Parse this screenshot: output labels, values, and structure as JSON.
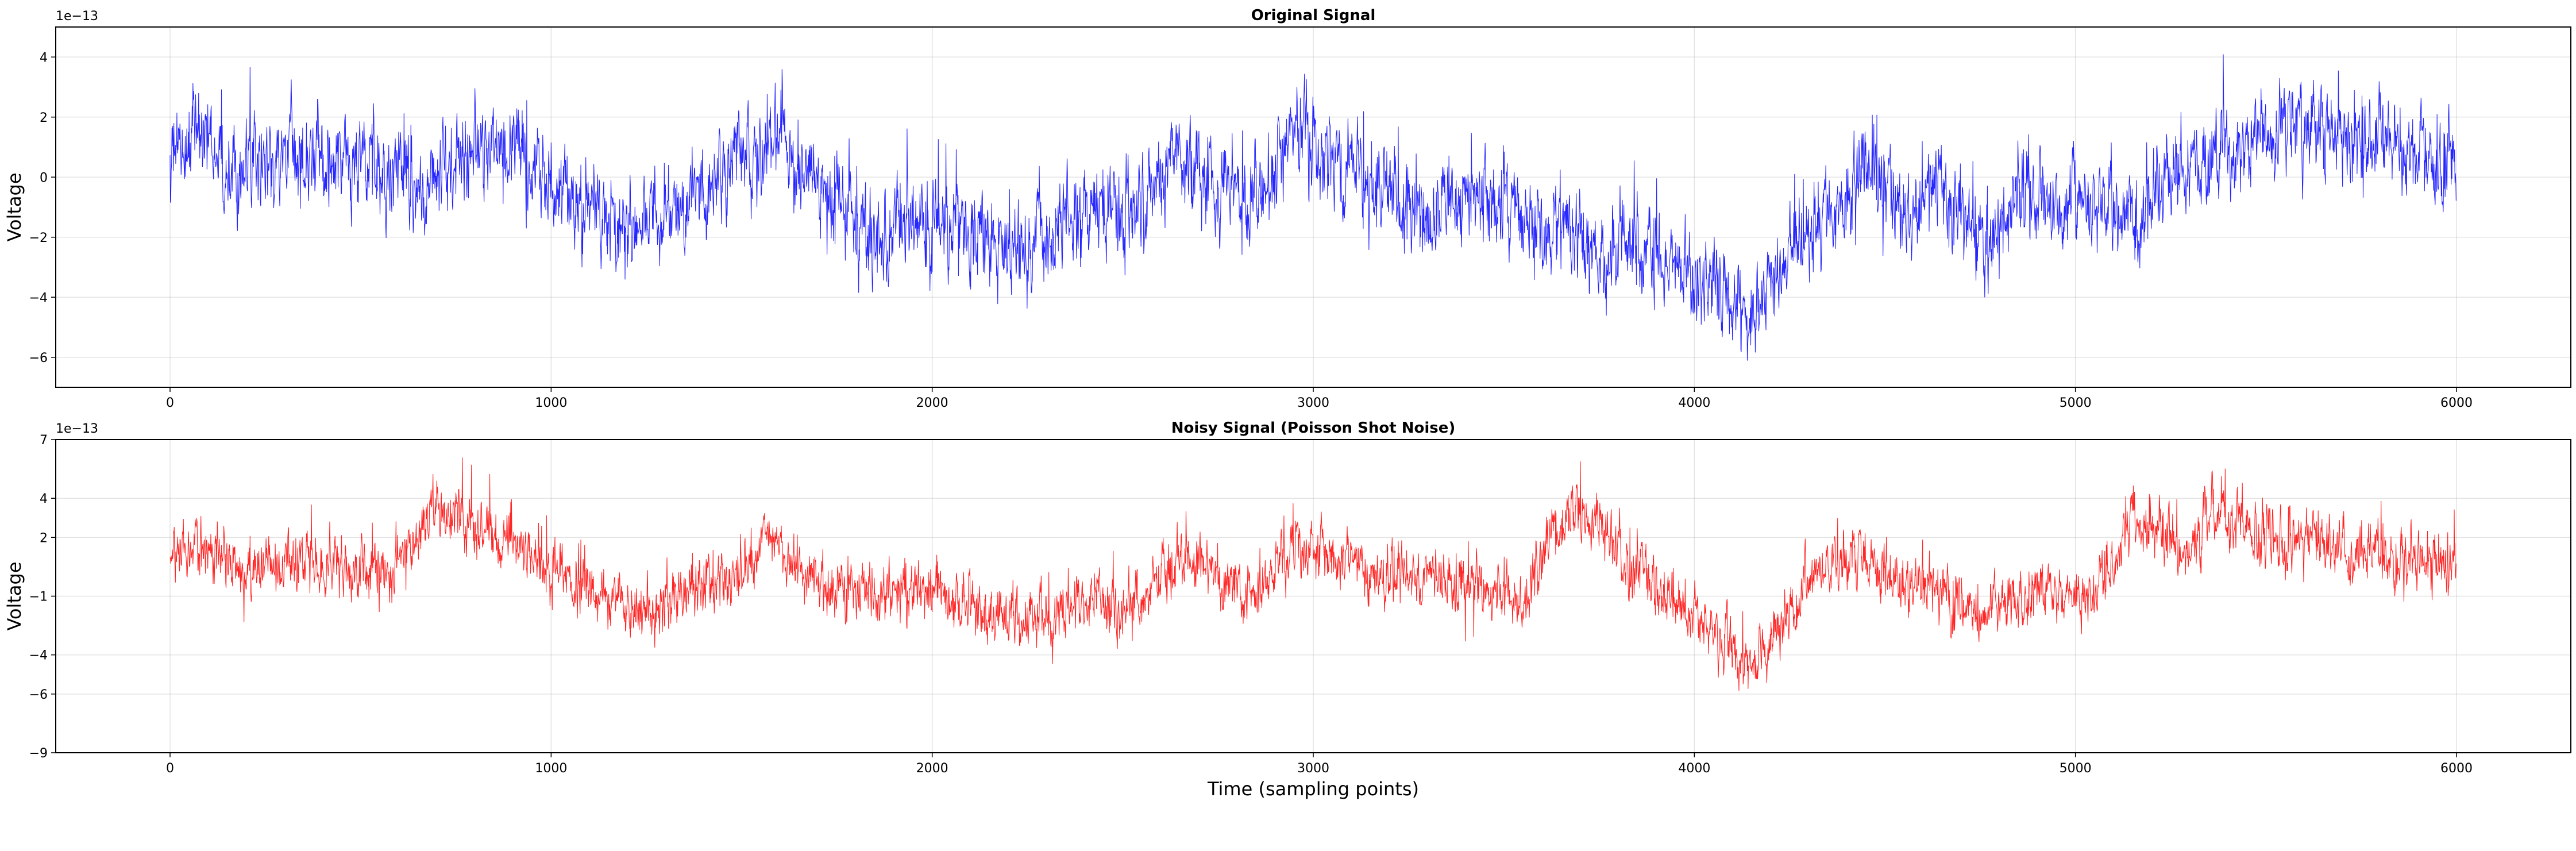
{
  "chart_data": [
    {
      "type": "line",
      "title": "Original Signal",
      "xlabel": "",
      "ylabel": "Voltage",
      "offset_text": "1e−13",
      "xlim": [
        -300,
        6300
      ],
      "ylim": [
        -7,
        5
      ],
      "xticks": [
        0,
        1000,
        2000,
        3000,
        4000,
        5000,
        6000
      ],
      "xtick_labels": [
        "0",
        "1000",
        "2000",
        "3000",
        "4000",
        "5000",
        "6000"
      ],
      "yticks": [
        -6,
        -4,
        -2,
        0,
        2,
        4
      ],
      "ytick_labels": [
        "−6",
        "−4",
        "−2",
        "0",
        "2",
        "4"
      ],
      "grid": true,
      "color": "#0000ff",
      "n_points": 6000,
      "noise_amplitude": 1.05,
      "trend_x": [
        0,
        80,
        200,
        350,
        500,
        700,
        850,
        920,
        1000,
        1100,
        1200,
        1300,
        1400,
        1500,
        1580,
        1650,
        1750,
        1900,
        2000,
        2100,
        2200,
        2300,
        2400,
        2550,
        2650,
        2750,
        2850,
        2950,
        3050,
        3150,
        3300,
        3450,
        3550,
        3650,
        3750,
        3850,
        3950,
        4050,
        4150,
        4250,
        4350,
        4450,
        4550,
        4650,
        4750,
        4850,
        4950,
        5050,
        5150,
        5250,
        5350,
        5450,
        5550,
        5650,
        5750,
        5850,
        6000
      ],
      "trend_y": [
        0.5,
        1.5,
        0.2,
        0.6,
        0.3,
        -0.2,
        1.3,
        1.1,
        -0.3,
        -1.0,
        -2.0,
        -1.0,
        -0.6,
        0.3,
        1.6,
        0.2,
        -0.8,
        -2.0,
        -1.7,
        -1.6,
        -2.6,
        -1.8,
        -1.0,
        -1.4,
        0.9,
        -0.6,
        -0.5,
        1.5,
        0.9,
        -0.3,
        -1.4,
        -0.5,
        -1.8,
        -1.5,
        -2.6,
        -1.9,
        -3.2,
        -3.7,
        -4.5,
        -2.5,
        -1.3,
        0.5,
        -1.4,
        -0.6,
        -2.2,
        -0.8,
        -0.6,
        -0.9,
        -1.4,
        0.1,
        0.6,
        1.1,
        1.3,
        1.6,
        1.4,
        1.0,
        0.2
      ]
    },
    {
      "type": "line",
      "title": "Noisy Signal (Poisson Shot Noise)",
      "xlabel": "Time (sampling points)",
      "ylabel": "Voltage",
      "offset_text": "1e−13",
      "xlim": [
        -300,
        6300
      ],
      "ylim": [
        -9,
        7
      ],
      "xticks": [
        0,
        1000,
        2000,
        3000,
        4000,
        5000,
        6000
      ],
      "xtick_labels": [
        "0",
        "1000",
        "2000",
        "3000",
        "4000",
        "5000",
        "6000"
      ],
      "yticks": [
        -9,
        -6,
        -4,
        -1,
        2,
        4,
        7
      ],
      "ytick_labels": [
        "−9",
        "−6",
        "−4",
        "−1",
        "2",
        "4",
        "7"
      ],
      "grid": true,
      "color": "#ff0000",
      "n_points": 6000,
      "noise_amplitude": 1.05,
      "trend_x": [
        0,
        80,
        200,
        350,
        500,
        600,
        700,
        800,
        900,
        1000,
        1100,
        1200,
        1300,
        1400,
        1500,
        1580,
        1650,
        1750,
        1900,
        2000,
        2100,
        2200,
        2300,
        2400,
        2550,
        2650,
        2750,
        2850,
        2950,
        3050,
        3150,
        3300,
        3450,
        3550,
        3650,
        3700,
        3800,
        3900,
        4000,
        4100,
        4150,
        4250,
        4350,
        4450,
        4550,
        4650,
        4750,
        4850,
        4950,
        5050,
        5100,
        5150,
        5250,
        5300,
        5350,
        5450,
        5550,
        5650,
        5750,
        5850,
        6000
      ],
      "trend_y": [
        0.5,
        1.5,
        0.3,
        0.7,
        0.3,
        1.0,
        3.8,
        2.6,
        1.8,
        0.0,
        -0.5,
        -1.9,
        -1.4,
        -0.6,
        0.3,
        2.2,
        0.3,
        -0.8,
        -0.8,
        -1.0,
        -1.4,
        -2.6,
        -2.0,
        -1.0,
        -1.4,
        1.0,
        -0.3,
        -0.7,
        1.4,
        1.0,
        0.2,
        -0.1,
        -0.5,
        -1.0,
        2.5,
        3.8,
        1.0,
        -0.5,
        -2.0,
        -3.9,
        -4.8,
        -1.6,
        0.5,
        1.0,
        -0.3,
        -1.0,
        -1.8,
        -1.0,
        -0.8,
        -1.0,
        1.2,
        3.0,
        2.2,
        1.0,
        3.2,
        2.5,
        1.8,
        1.6,
        1.4,
        1.0,
        0.3
      ]
    }
  ]
}
